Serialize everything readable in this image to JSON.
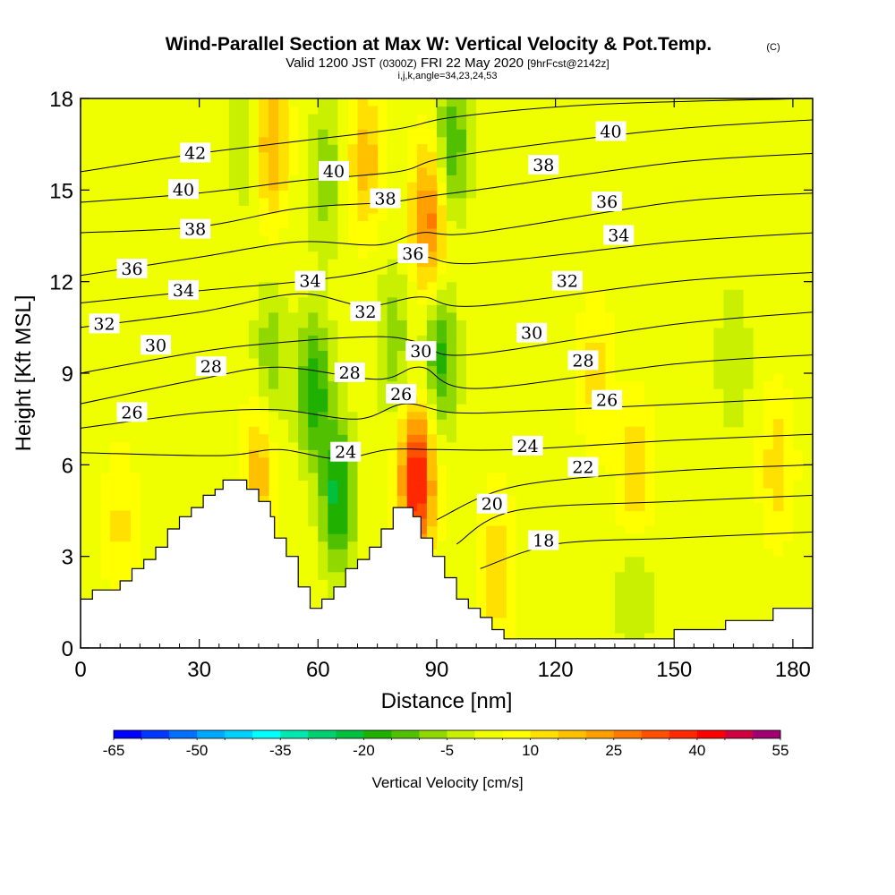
{
  "chart_data": {
    "type": "heatmap",
    "title": "Wind-Parallel Section at Max W: Vertical Velocity & Pot.Temp.",
    "copyright_mark": "(C)",
    "subtitle": {
      "prefix": "Valid 1200 JST",
      "utc": "(0300Z)",
      "date": "FRI 22 May 2020",
      "forecast": "[9hrFcst@2142z]"
    },
    "indices_line": "i,j,k,angle=34,23,24,53",
    "xlabel": "Distance [nm]",
    "ylabel": "Height [Kft MSL]",
    "xlim": [
      0,
      185
    ],
    "ylim": [
      0,
      18
    ],
    "x_ticks": [
      0,
      30,
      60,
      90,
      120,
      150,
      180
    ],
    "y_ticks": [
      0,
      3,
      6,
      9,
      12,
      15,
      18
    ],
    "colorbar": {
      "label": "Vertical Velocity [cm/s]",
      "tick_labels": [
        "-65",
        "-50",
        "-35",
        "-20",
        "-5",
        "10",
        "25",
        "40",
        "55"
      ],
      "levels": [
        -65,
        -60,
        -55,
        -50,
        -45,
        -40,
        -35,
        -30,
        -25,
        -20,
        -15,
        -10,
        -5,
        0,
        5,
        10,
        15,
        20,
        25,
        30,
        35,
        40,
        45,
        50,
        55
      ],
      "colors": [
        "#0000ff",
        "#0038ff",
        "#0070ff",
        "#00a8ff",
        "#00d0ff",
        "#00ffff",
        "#00e8b0",
        "#00d070",
        "#00c040",
        "#20b000",
        "#50c000",
        "#90d800",
        "#c8f000",
        "#f0ff00",
        "#ffff00",
        "#ffe000",
        "#ffc000",
        "#ffa000",
        "#ff7800",
        "#ff5000",
        "#ff2800",
        "#ff0000",
        "#d00040",
        "#a00070",
        "#700090"
      ]
    },
    "velocity_features": [
      {
        "x": 59,
        "y": 8.5,
        "value": -22
      },
      {
        "x": 65,
        "y": 5.0,
        "value": -25
      },
      {
        "x": 48,
        "y": 9.5,
        "value": -12
      },
      {
        "x": 85,
        "y": 5.5,
        "value": 40
      },
      {
        "x": 88,
        "y": 14,
        "value": 25
      },
      {
        "x": 91,
        "y": 9.5,
        "value": -20
      },
      {
        "x": 94,
        "y": 16.5,
        "value": -18
      },
      {
        "x": 79,
        "y": 10,
        "value": -12
      },
      {
        "x": 62,
        "y": 15.5,
        "value": -12
      },
      {
        "x": 42,
        "y": 16.5,
        "value": -8
      },
      {
        "x": 72,
        "y": 16,
        "value": 15
      },
      {
        "x": 48,
        "y": 16.5,
        "value": 18
      },
      {
        "x": 165,
        "y": 9.5,
        "value": -8
      },
      {
        "x": 140,
        "y": 2.0,
        "value": -10
      },
      {
        "x": 140,
        "y": 5.5,
        "value": 14
      },
      {
        "x": 130,
        "y": 9,
        "value": 9
      },
      {
        "x": 176,
        "y": 6,
        "value": 10
      },
      {
        "x": 10,
        "y": 4,
        "value": 8
      },
      {
        "x": 45,
        "y": 5.8,
        "value": 15
      },
      {
        "x": 105,
        "y": 2.5,
        "value": 12
      }
    ],
    "terrain": [
      [
        0,
        1.6
      ],
      [
        3,
        1.6
      ],
      [
        3,
        1.9
      ],
      [
        10,
        1.9
      ],
      [
        10,
        2.2
      ],
      [
        13,
        2.2
      ],
      [
        13,
        2.6
      ],
      [
        16,
        2.6
      ],
      [
        16,
        2.9
      ],
      [
        19,
        2.9
      ],
      [
        19,
        3.3
      ],
      [
        22,
        3.3
      ],
      [
        22,
        3.9
      ],
      [
        25,
        3.9
      ],
      [
        25,
        4.3
      ],
      [
        28,
        4.3
      ],
      [
        28,
        4.6
      ],
      [
        31,
        4.6
      ],
      [
        31,
        5.0
      ],
      [
        34,
        5.0
      ],
      [
        34,
        5.2
      ],
      [
        36,
        5.2
      ],
      [
        36,
        5.5
      ],
      [
        42,
        5.5
      ],
      [
        42,
        5.2
      ],
      [
        45,
        5.2
      ],
      [
        45,
        4.8
      ],
      [
        48,
        4.8
      ],
      [
        48,
        4.3
      ],
      [
        49,
        4.3
      ],
      [
        49,
        3.6
      ],
      [
        52,
        3.6
      ],
      [
        52,
        3.0
      ],
      [
        55,
        3.0
      ],
      [
        55,
        2.0
      ],
      [
        58,
        2.0
      ],
      [
        58,
        1.3
      ],
      [
        61,
        1.3
      ],
      [
        61,
        1.6
      ],
      [
        64,
        1.6
      ],
      [
        64,
        2.0
      ],
      [
        67,
        2.0
      ],
      [
        67,
        2.6
      ],
      [
        70,
        2.6
      ],
      [
        70,
        2.9
      ],
      [
        73,
        2.9
      ],
      [
        73,
        3.3
      ],
      [
        76,
        3.3
      ],
      [
        76,
        3.9
      ],
      [
        79,
        3.9
      ],
      [
        79,
        4.6
      ],
      [
        84,
        4.6
      ],
      [
        84,
        4.3
      ],
      [
        86,
        4.3
      ],
      [
        86,
        3.6
      ],
      [
        89,
        3.6
      ],
      [
        89,
        3.0
      ],
      [
        92,
        3.0
      ],
      [
        92,
        2.3
      ],
      [
        95,
        2.3
      ],
      [
        95,
        1.6
      ],
      [
        98,
        1.6
      ],
      [
        98,
        1.3
      ],
      [
        101,
        1.3
      ],
      [
        101,
        1.0
      ],
      [
        104,
        1.0
      ],
      [
        104,
        0.6
      ],
      [
        107,
        0.6
      ],
      [
        107,
        0.3
      ],
      [
        112,
        0.3
      ],
      [
        112,
        0.3
      ],
      [
        150,
        0.3
      ],
      [
        150,
        0.6
      ],
      [
        153,
        0.6
      ],
      [
        153,
        0.6
      ],
      [
        163,
        0.6
      ],
      [
        163,
        0.9
      ],
      [
        175,
        0.9
      ],
      [
        175,
        1.3
      ],
      [
        185,
        1.3
      ]
    ],
    "isentropes": [
      {
        "theta": 18,
        "label_x": 117,
        "points": [
          [
            101,
            2.6
          ],
          [
            120,
            3.4
          ],
          [
            150,
            3.6
          ],
          [
            185,
            3.8
          ]
        ]
      },
      {
        "theta": 20,
        "label_x": 104,
        "points": [
          [
            95,
            3.4
          ],
          [
            110,
            4.5
          ],
          [
            150,
            4.8
          ],
          [
            185,
            5.0
          ]
        ]
      },
      {
        "theta": 22,
        "label_x": 127,
        "points": [
          [
            90,
            4.2
          ],
          [
            110,
            5.3
          ],
          [
            150,
            5.8
          ],
          [
            185,
            6.0
          ]
        ]
      },
      {
        "theta": 24,
        "label_x": 113,
        "points": [
          [
            0,
            6.4
          ],
          [
            35,
            6.3
          ],
          [
            50,
            6.5
          ],
          [
            65,
            6.2
          ],
          [
            78,
            6.5
          ],
          [
            90,
            6.5
          ],
          [
            110,
            6.5
          ],
          [
            150,
            6.8
          ],
          [
            185,
            7.0
          ]
        ]
      },
      {
        "theta": 26,
        "label_x": 130,
        "points": [
          [
            0,
            7.2
          ],
          [
            30,
            7.7
          ],
          [
            50,
            7.8
          ],
          [
            70,
            7.5
          ],
          [
            82,
            8.0
          ],
          [
            95,
            7.7
          ],
          [
            120,
            7.8
          ],
          [
            185,
            8.2
          ]
        ]
      },
      {
        "theta": 28,
        "label_x": 126,
        "points": [
          [
            0,
            8.0
          ],
          [
            30,
            8.8
          ],
          [
            50,
            9.2
          ],
          [
            75,
            8.8
          ],
          [
            86,
            9.2
          ],
          [
            100,
            8.5
          ],
          [
            150,
            9.3
          ],
          [
            185,
            9.6
          ]
        ]
      },
      {
        "theta": 30,
        "label_x": 114,
        "points": [
          [
            0,
            9.0
          ],
          [
            30,
            9.7
          ],
          [
            50,
            10.0
          ],
          [
            75,
            10.2
          ],
          [
            86,
            10.0
          ],
          [
            98,
            9.6
          ],
          [
            150,
            10.6
          ],
          [
            185,
            11.0
          ]
        ]
      },
      {
        "theta": 32,
        "label_x": 123,
        "points": [
          [
            0,
            10.5
          ],
          [
            30,
            11.0
          ],
          [
            55,
            11.6
          ],
          [
            72,
            11.2
          ],
          [
            86,
            11.5
          ],
          [
            100,
            11.2
          ],
          [
            150,
            12.0
          ],
          [
            185,
            12.3
          ]
        ]
      },
      {
        "theta": 34,
        "label_x": 136,
        "points": [
          [
            0,
            11.3
          ],
          [
            30,
            11.7
          ],
          [
            55,
            12.0
          ],
          [
            72,
            12.3
          ],
          [
            86,
            12.8
          ],
          [
            100,
            12.6
          ],
          [
            150,
            13.3
          ],
          [
            185,
            13.6
          ]
        ]
      },
      {
        "theta": 36,
        "label_x": 133,
        "points": [
          [
            0,
            12.2
          ],
          [
            30,
            12.8
          ],
          [
            55,
            13.3
          ],
          [
            75,
            13.2
          ],
          [
            86,
            13.6
          ],
          [
            100,
            13.6
          ],
          [
            150,
            14.6
          ],
          [
            185,
            14.9
          ]
        ]
      },
      {
        "theta": 38,
        "label_x": 118,
        "points": [
          [
            0,
            13.6
          ],
          [
            30,
            13.8
          ],
          [
            55,
            14.4
          ],
          [
            78,
            14.6
          ],
          [
            88,
            14.8
          ],
          [
            100,
            15.0
          ],
          [
            150,
            15.9
          ],
          [
            185,
            16.2
          ]
        ]
      },
      {
        "theta": 40,
        "label_x": 133,
        "points": [
          [
            0,
            14.6
          ],
          [
            30,
            14.9
          ],
          [
            55,
            15.3
          ],
          [
            80,
            15.6
          ],
          [
            90,
            16.0
          ],
          [
            110,
            16.4
          ],
          [
            150,
            17.0
          ],
          [
            185,
            17.3
          ]
        ]
      },
      {
        "theta": 42,
        "label_x": 30,
        "points": [
          [
            0,
            15.6
          ],
          [
            30,
            16.2
          ],
          [
            55,
            16.6
          ],
          [
            80,
            17.0
          ],
          [
            95,
            17.4
          ],
          [
            130,
            17.8
          ],
          [
            185,
            18.0
          ]
        ]
      }
    ],
    "contour_labels": [
      {
        "text": "42",
        "x": 29,
        "y": 16.2
      },
      {
        "text": "40",
        "x": 26,
        "y": 15.0
      },
      {
        "text": "38",
        "x": 29,
        "y": 13.7
      },
      {
        "text": "36",
        "x": 13,
        "y": 12.4
      },
      {
        "text": "34",
        "x": 26,
        "y": 11.7
      },
      {
        "text": "32",
        "x": 6,
        "y": 10.6
      },
      {
        "text": "30",
        "x": 19,
        "y": 9.9
      },
      {
        "text": "28",
        "x": 33,
        "y": 9.2
      },
      {
        "text": "26",
        "x": 13,
        "y": 7.7
      },
      {
        "text": "40",
        "x": 64,
        "y": 15.6
      },
      {
        "text": "38",
        "x": 77,
        "y": 14.7
      },
      {
        "text": "36",
        "x": 84,
        "y": 12.9
      },
      {
        "text": "34",
        "x": 58,
        "y": 12.0
      },
      {
        "text": "32",
        "x": 72,
        "y": 11.0
      },
      {
        "text": "30",
        "x": 86,
        "y": 9.7
      },
      {
        "text": "28",
        "x": 68,
        "y": 9.0
      },
      {
        "text": "26",
        "x": 81,
        "y": 8.3
      },
      {
        "text": "24",
        "x": 67,
        "y": 6.4
      },
      {
        "text": "40",
        "x": 134,
        "y": 16.9
      },
      {
        "text": "38",
        "x": 117,
        "y": 15.8
      },
      {
        "text": "36",
        "x": 133,
        "y": 14.6
      },
      {
        "text": "34",
        "x": 136,
        "y": 13.5
      },
      {
        "text": "32",
        "x": 123,
        "y": 12.0
      },
      {
        "text": "30",
        "x": 114,
        "y": 10.3
      },
      {
        "text": "28",
        "x": 127,
        "y": 9.4
      },
      {
        "text": "26",
        "x": 133,
        "y": 8.1
      },
      {
        "text": "24",
        "x": 113,
        "y": 6.6
      },
      {
        "text": "22",
        "x": 127,
        "y": 5.9
      },
      {
        "text": "20",
        "x": 104,
        "y": 4.7
      },
      {
        "text": "18",
        "x": 117,
        "y": 3.5
      }
    ]
  }
}
